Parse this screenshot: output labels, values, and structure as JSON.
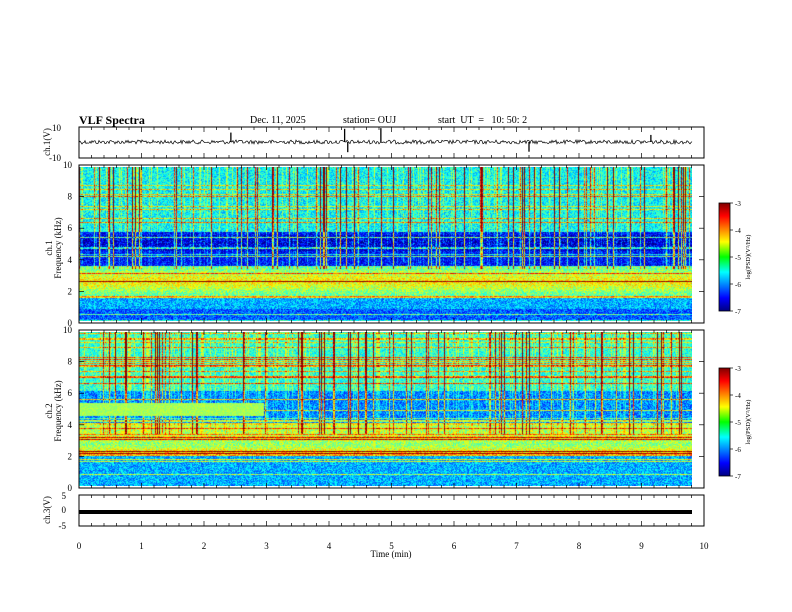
{
  "header": {
    "title": "VLF Spectra",
    "date": "Dec. 11, 2025",
    "station": "station= OUJ",
    "start": "start  UT  =   10: 50: 2"
  },
  "chart_data": [
    {
      "type": "line",
      "panel": "ch1-waveform",
      "ylabel": "ch.1(V)",
      "ylim": [
        -10,
        10
      ],
      "yticks": [
        "10",
        "-10"
      ],
      "xlim": [
        0,
        10
      ],
      "series": [
        {
          "baseline": 0,
          "noise_amplitude": 0.8,
          "spikes_at_min": [
            2.43,
            4.25,
            4.3,
            4.83,
            7.2,
            9.15
          ]
        }
      ]
    },
    {
      "type": "heatmap",
      "panel": "ch1-spectrogram",
      "ylabel_line1": "ch.1",
      "ylabel_line2": "Frequency (kHz)",
      "ylim": [
        0,
        10
      ],
      "yticks": [
        "0",
        "2",
        "4",
        "6",
        "8",
        "10"
      ],
      "xlim": [
        0,
        9.8
      ],
      "colorbar": {
        "label": "log(PSD)(V²/Hz)",
        "range": [
          -7,
          -3
        ],
        "ticks": [
          "-3",
          "-4",
          "-5",
          "-6",
          "-7"
        ]
      }
    },
    {
      "type": "heatmap",
      "panel": "ch2-spectrogram",
      "ylabel_line1": "ch.2",
      "ylabel_line2": "Frequency (kHz)",
      "ylim": [
        0,
        10
      ],
      "yticks": [
        "0",
        "2",
        "4",
        "6",
        "8",
        "10"
      ],
      "xlim": [
        0,
        9.8
      ],
      "colorbar": {
        "label": "log(PSD)(V²/Hz)",
        "range": [
          -7,
          -3
        ],
        "ticks": [
          "-3",
          "-4",
          "-5",
          "-6",
          "-7"
        ]
      }
    },
    {
      "type": "line",
      "panel": "ch3-waveform",
      "ylabel": "ch.3(V)",
      "ylim": [
        -5,
        5
      ],
      "yticks": [
        "5",
        "0",
        "-5"
      ],
      "xlim": [
        0,
        10
      ],
      "series": [
        {
          "baseline": -1.3
        }
      ]
    }
  ],
  "xaxis": {
    "label": "Time (min)",
    "ticks": [
      "0",
      "1",
      "2",
      "3",
      "4",
      "5",
      "6",
      "7",
      "8",
      "9",
      "10"
    ]
  }
}
